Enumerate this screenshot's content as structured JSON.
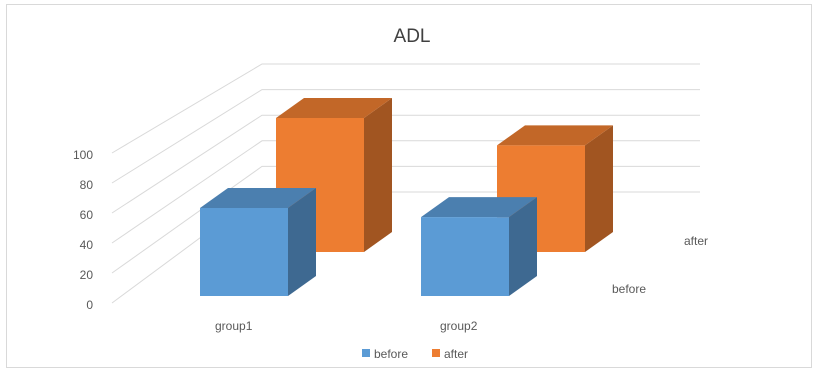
{
  "chart_data": {
    "type": "bar",
    "title": "ADL",
    "categories": [
      "group1",
      "group2"
    ],
    "series": [
      {
        "name": "before",
        "values": [
          58,
          52
        ],
        "color": "#5b9bd5"
      },
      {
        "name": "after",
        "values": [
          93,
          74
        ],
        "color": "#ed7d31"
      }
    ],
    "depth_labels": [
      "before",
      "after"
    ],
    "y_ticks": [
      "0",
      "20",
      "40",
      "60",
      "80",
      "100"
    ],
    "ylim": [
      0,
      100
    ],
    "grid": true,
    "legend": "bottom",
    "render": "3d-column"
  }
}
